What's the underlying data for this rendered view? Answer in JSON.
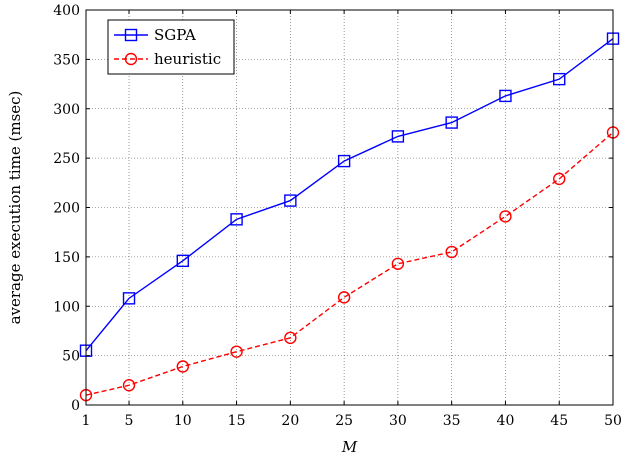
{
  "chart_data": {
    "type": "line",
    "title": "",
    "xlabel": "M",
    "ylabel": "average execution time (msec)",
    "x": [
      1,
      5,
      10,
      15,
      20,
      25,
      30,
      35,
      40,
      45,
      50
    ],
    "x_tick_labels": [
      "1",
      "5",
      "10",
      "15",
      "20",
      "25",
      "30",
      "35",
      "40",
      "45",
      "50"
    ],
    "y_ticks": [
      0,
      50,
      100,
      150,
      200,
      250,
      300,
      350,
      400
    ],
    "y_tick_labels": [
      "0",
      "50",
      "100",
      "150",
      "200",
      "250",
      "300",
      "350",
      "400"
    ],
    "xlim": [
      1,
      50
    ],
    "ylim": [
      0,
      400
    ],
    "grid": true,
    "legend_position": "top-left",
    "series": [
      {
        "name": "SGPA",
        "values": [
          55,
          108,
          146,
          188,
          207,
          247,
          272,
          286,
          313,
          330,
          371
        ],
        "color": "#0000ff",
        "marker": "square",
        "line_style": "solid"
      },
      {
        "name": "heuristic",
        "values": [
          10,
          20,
          39,
          54,
          68,
          109,
          143,
          155,
          191,
          229,
          276
        ],
        "color": "#ff0000",
        "marker": "circle",
        "line_style": "dashed"
      }
    ]
  }
}
